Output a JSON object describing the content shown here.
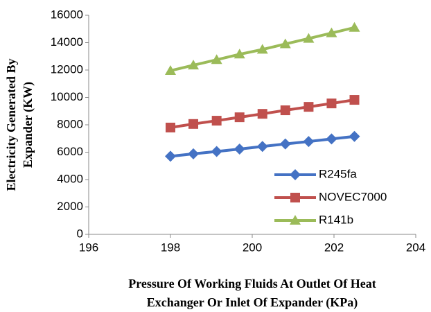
{
  "chart_data": {
    "type": "line",
    "xlabel": [
      "Pressure Of Working Fluids At Outlet Of Heat",
      "Exchanger Or Inlet Of Expander (KPa)"
    ],
    "ylabel": [
      "Electricity Generated By",
      "Expander (KW)"
    ],
    "x": [
      198,
      198.56,
      199.13,
      199.69,
      200.25,
      200.81,
      201.38,
      201.94,
      202.5
    ],
    "series": [
      {
        "name": "R245fa",
        "color": "#4472c4",
        "marker": "diamond",
        "values": [
          5700,
          5880,
          6050,
          6230,
          6420,
          6600,
          6780,
          6970,
          7150
        ]
      },
      {
        "name": "NOVEC7000",
        "color": "#c0504d",
        "marker": "square",
        "values": [
          7800,
          8060,
          8300,
          8550,
          8800,
          9060,
          9310,
          9560,
          9820
        ]
      },
      {
        "name": "R141b",
        "color": "#9bbb59",
        "marker": "triangle",
        "values": [
          11950,
          12350,
          12750,
          13150,
          13500,
          13900,
          14300,
          14700,
          15100
        ]
      }
    ],
    "xlim": [
      196,
      204
    ],
    "xticks": [
      196,
      198,
      200,
      202,
      204
    ],
    "ylim": [
      0,
      16000
    ],
    "yticks": [
      0,
      2000,
      4000,
      6000,
      8000,
      10000,
      12000,
      14000,
      16000
    ],
    "legend": "lower right"
  }
}
